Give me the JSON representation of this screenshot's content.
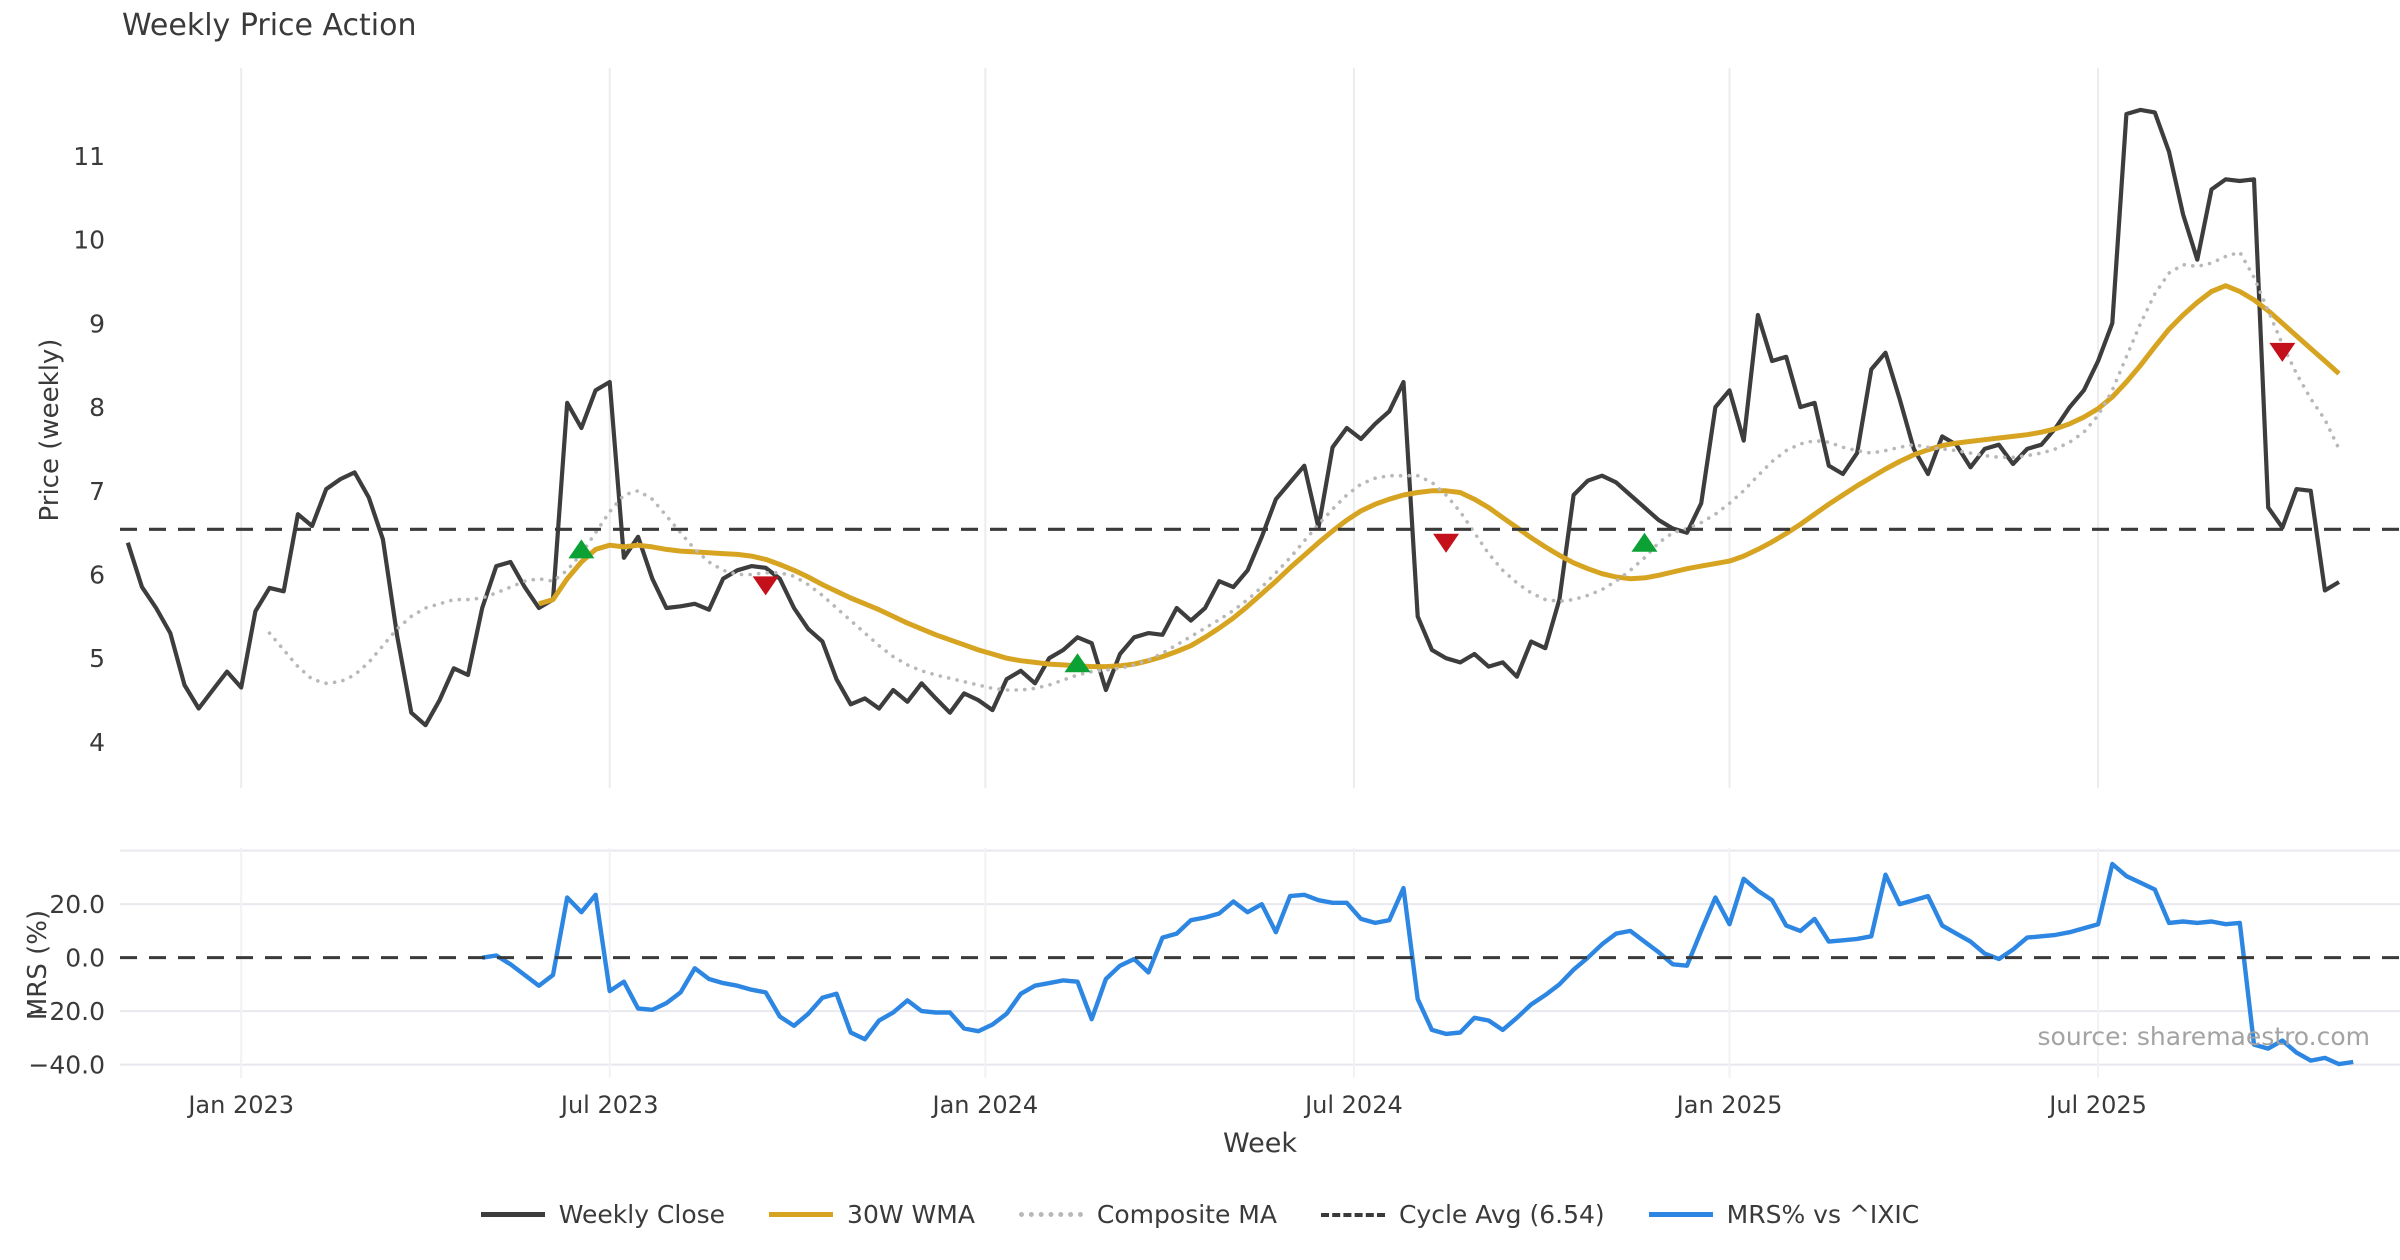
{
  "chart_data": {
    "type": "line",
    "title": "Weekly Price Action",
    "xlabel": "Week",
    "source": "source: sharemaestro.com",
    "x_unit": "week_index",
    "xlim_weeks": [
      -0.55,
      160.3
    ],
    "x_ticks": [
      {
        "week": 8,
        "label": "Jan 2023"
      },
      {
        "week": 34,
        "label": "Jul 2023"
      },
      {
        "week": 60.5,
        "label": "Jan 2024"
      },
      {
        "week": 86.5,
        "label": "Jul 2024"
      },
      {
        "week": 113,
        "label": "Jan 2025"
      },
      {
        "week": 139,
        "label": "Jul 2025"
      }
    ],
    "marker_colors": {
      "buy": "#0ba134",
      "sell": "#c3101b"
    },
    "panels": [
      {
        "name": "price",
        "ylabel": "Price (weekly)",
        "ylim": [
          3.45,
          12.05
        ],
        "yticks": [
          {
            "v": 4,
            "label": "4"
          },
          {
            "v": 5,
            "label": "5"
          },
          {
            "v": 6,
            "label": "6"
          },
          {
            "v": 7,
            "label": "7"
          },
          {
            "v": 8,
            "label": "8"
          },
          {
            "v": 9,
            "label": "9"
          },
          {
            "v": 10,
            "label": "10"
          },
          {
            "v": 11,
            "label": "11"
          }
        ],
        "grid": "vertical",
        "series": [
          {
            "name": "Weekly Close",
            "type": "line",
            "color": "#3d3d3d",
            "style": "solid",
            "width": 4.2,
            "start_week": 0,
            "values": [
              6.38,
              5.85,
              5.6,
              5.3,
              4.68,
              4.4,
              4.62,
              4.84,
              4.65,
              5.56,
              5.84,
              5.8,
              6.72,
              6.58,
              7.02,
              7.14,
              7.22,
              6.92,
              6.42,
              5.27,
              4.35,
              4.2,
              4.5,
              4.88,
              4.8,
              5.6,
              6.1,
              6.15,
              5.85,
              5.6,
              5.7,
              8.05,
              7.75,
              8.2,
              8.3,
              6.2,
              6.45,
              5.95,
              5.6,
              5.62,
              5.65,
              5.58,
              5.95,
              6.05,
              6.1,
              6.08,
              5.95,
              5.6,
              5.35,
              5.2,
              4.75,
              4.45,
              4.52,
              4.4,
              4.62,
              4.48,
              4.7,
              4.52,
              4.35,
              4.58,
              4.5,
              4.38,
              4.75,
              4.85,
              4.7,
              5.0,
              5.1,
              5.25,
              5.18,
              4.62,
              5.05,
              5.25,
              5.3,
              5.28,
              5.6,
              5.45,
              5.6,
              5.92,
              5.85,
              6.05,
              6.45,
              6.9,
              7.1,
              7.3,
              6.56,
              7.52,
              7.75,
              7.62,
              7.8,
              7.95,
              8.3,
              5.5,
              5.1,
              5.0,
              4.95,
              5.05,
              4.9,
              4.95,
              4.78,
              5.2,
              5.12,
              5.7,
              6.95,
              7.12,
              7.18,
              7.1,
              6.95,
              6.8,
              6.65,
              6.55,
              6.5,
              6.85,
              8.0,
              8.2,
              7.6,
              9.1,
              8.55,
              8.6,
              8.0,
              8.05,
              7.3,
              7.2,
              7.45,
              8.45,
              8.65,
              8.1,
              7.5,
              7.2,
              7.65,
              7.55,
              7.28,
              7.5,
              7.55,
              7.32,
              7.5,
              7.55,
              7.75,
              8.0,
              8.2,
              8.55,
              9.0,
              11.5,
              11.55,
              11.52,
              11.05,
              10.3,
              9.76,
              10.6,
              10.72,
              10.7,
              10.72,
              6.8,
              6.56,
              7.02,
              7.0,
              5.81,
              5.91
            ]
          },
          {
            "name": "30W WMA",
            "type": "line",
            "color": "#d7a422",
            "style": "solid",
            "width": 5,
            "start_week": 29,
            "values": [
              5.65,
              5.7,
              5.95,
              6.15,
              6.3,
              6.35,
              6.33,
              6.35,
              6.33,
              6.3,
              6.28,
              6.27,
              6.26,
              6.25,
              6.24,
              6.22,
              6.18,
              6.12,
              6.05,
              5.97,
              5.88,
              5.8,
              5.72,
              5.65,
              5.58,
              5.5,
              5.42,
              5.35,
              5.28,
              5.22,
              5.16,
              5.1,
              5.05,
              5.0,
              4.97,
              4.95,
              4.93,
              4.92,
              4.91,
              4.9,
              4.9,
              4.91,
              4.93,
              4.97,
              5.02,
              5.08,
              5.15,
              5.25,
              5.36,
              5.48,
              5.62,
              5.77,
              5.92,
              6.08,
              6.23,
              6.38,
              6.52,
              6.65,
              6.76,
              6.84,
              6.9,
              6.95,
              6.98,
              7.0,
              7.0,
              6.98,
              6.9,
              6.8,
              6.68,
              6.56,
              6.44,
              6.33,
              6.23,
              6.14,
              6.07,
              6.01,
              5.97,
              5.95,
              5.96,
              5.99,
              6.03,
              6.07,
              6.1,
              6.13,
              6.16,
              6.22,
              6.3,
              6.39,
              6.49,
              6.6,
              6.72,
              6.84,
              6.95,
              7.06,
              7.16,
              7.26,
              7.35,
              7.43,
              7.49,
              7.54,
              7.57,
              7.59,
              7.61,
              7.63,
              7.65,
              7.67,
              7.7,
              7.74,
              7.8,
              7.88,
              7.98,
              8.12,
              8.3,
              8.5,
              8.72,
              8.93,
              9.1,
              9.25,
              9.38,
              9.45,
              9.38,
              9.28,
              9.15,
              9.0,
              8.85,
              8.7,
              8.55,
              8.4
            ]
          },
          {
            "name": "Composite MA",
            "type": "line",
            "color": "#b8b8b8",
            "style": "dotted",
            "width": 3.6,
            "start_week": 10,
            "values": [
              5.3,
              5.1,
              4.9,
              4.75,
              4.7,
              4.72,
              4.8,
              4.95,
              5.15,
              5.35,
              5.5,
              5.6,
              5.65,
              5.7,
              5.7,
              5.72,
              5.78,
              5.85,
              5.92,
              5.95,
              5.92,
              6.05,
              6.25,
              6.5,
              6.75,
              6.95,
              7.0,
              6.9,
              6.7,
              6.5,
              6.3,
              6.15,
              6.05,
              6.0,
              6.0,
              6.02,
              6.02,
              5.98,
              5.88,
              5.75,
              5.6,
              5.45,
              5.3,
              5.15,
              5.02,
              4.92,
              4.85,
              4.8,
              4.76,
              4.72,
              4.68,
              4.64,
              4.62,
              4.62,
              4.64,
              4.68,
              4.74,
              4.8,
              4.84,
              4.86,
              4.88,
              4.92,
              4.98,
              5.06,
              5.16,
              5.26,
              5.36,
              5.46,
              5.57,
              5.7,
              5.85,
              6.02,
              6.2,
              6.4,
              6.6,
              6.78,
              6.95,
              7.08,
              7.15,
              7.18,
              7.18,
              7.18,
              7.1,
              6.95,
              6.75,
              6.5,
              6.25,
              6.05,
              5.9,
              5.78,
              5.7,
              5.68,
              5.7,
              5.75,
              5.82,
              5.92,
              6.05,
              6.2,
              6.38,
              6.5,
              6.55,
              6.62,
              6.72,
              6.85,
              7.0,
              7.18,
              7.35,
              7.48,
              7.56,
              7.6,
              7.58,
              7.52,
              7.48,
              7.45,
              7.48,
              7.52,
              7.55,
              7.52,
              7.5,
              7.48,
              7.45,
              7.42,
              7.4,
              7.4,
              7.42,
              7.45,
              7.5,
              7.58,
              7.7,
              7.9,
              8.2,
              8.6,
              9.0,
              9.35,
              9.6,
              9.7,
              9.68,
              9.72,
              9.8,
              9.85,
              9.55,
              9.15,
              8.75,
              8.4,
              8.1,
              7.85,
              7.5
            ]
          },
          {
            "name": "Cycle Avg (6.54)",
            "type": "hline",
            "color": "#3a3a3a",
            "style": "dashed",
            "width": 3.2,
            "value": 6.54
          }
        ],
        "markers": [
          {
            "signal": "buy",
            "week": 32,
            "value": 6.3
          },
          {
            "signal": "sell",
            "week": 45,
            "value": 5.87
          },
          {
            "signal": "buy",
            "week": 67,
            "value": 4.94
          },
          {
            "signal": "sell",
            "week": 93,
            "value": 6.38
          },
          {
            "signal": "buy",
            "week": 107,
            "value": 6.38
          },
          {
            "signal": "sell",
            "week": 152,
            "value": 8.66
          }
        ]
      },
      {
        "name": "mrs",
        "ylabel": "MRS (%)",
        "ylim": [
          -45,
          41
        ],
        "yticks": [
          {
            "v": 20,
            "label": "20.0"
          },
          {
            "v": 0,
            "label": "0.0"
          },
          {
            "v": -20,
            "label": "−20.0"
          },
          {
            "v": -40,
            "label": "−40.0"
          }
        ],
        "grid": "both",
        "gridlines_h": [
          40,
          20,
          -20,
          -40
        ],
        "series": [
          {
            "name": "MRS% vs ^IXIC",
            "type": "line",
            "color": "#2d87e2",
            "style": "solid",
            "width": 4.4,
            "start_week": 25,
            "values": [
              0.0,
              0.8,
              -2.5,
              -6.5,
              -10.5,
              -6.5,
              22.5,
              17.0,
              23.5,
              -12.5,
              -9.0,
              -19.0,
              -19.5,
              -17.0,
              -13.0,
              -4.0,
              -8.0,
              -9.5,
              -10.5,
              -12.0,
              -13.0,
              -22.0,
              -25.5,
              -21.0,
              -15.0,
              -13.5,
              -28.0,
              -30.5,
              -23.5,
              -20.5,
              -16.0,
              -20.0,
              -20.5,
              -20.5,
              -26.5,
              -27.5,
              -25.0,
              -21.0,
              -13.5,
              -10.5,
              -9.5,
              -8.5,
              -9.0,
              -23.0,
              -8.0,
              -3.0,
              -0.5,
              -5.5,
              7.5,
              9.0,
              14.0,
              15.0,
              16.5,
              21.0,
              17.0,
              20.0,
              9.5,
              23.0,
              23.5,
              21.5,
              20.5,
              20.5,
              14.5,
              13.0,
              14.0,
              26.0,
              -15.5,
              -27.0,
              -28.5,
              -28.0,
              -22.5,
              -23.5,
              -27.0,
              -22.5,
              -17.5,
              -14.0,
              -10.0,
              -4.5,
              0.0,
              5.0,
              9.0,
              10.0,
              6.0,
              2.0,
              -2.5,
              -3.0,
              10.0,
              22.5,
              12.5,
              29.5,
              25.0,
              21.5,
              12.0,
              10.0,
              14.5,
              6.0,
              6.5,
              7.0,
              8.0,
              31.0,
              20.0,
              21.5,
              23.0,
              12.0,
              9.0,
              6.0,
              1.5,
              -0.5,
              3.0,
              7.5,
              8.0,
              8.5,
              9.5,
              11.0,
              12.5,
              35.0,
              30.5,
              28.0,
              25.5,
              13.0,
              13.5,
              13.0,
              13.5,
              12.5,
              13.0,
              -32.5,
              -34.0,
              -31.0,
              -35.5,
              -38.5,
              -37.5,
              -39.8,
              -39.0
            ]
          },
          {
            "name": "zero-line",
            "type": "hline",
            "color": "#3a3a3a",
            "style": "dashed",
            "width": 3,
            "value": 0
          }
        ],
        "markers": []
      }
    ],
    "legend": [
      {
        "label": "Weekly Close",
        "color": "#3d3d3d",
        "style": "solid"
      },
      {
        "label": "30W WMA",
        "color": "#d7a422",
        "style": "solid"
      },
      {
        "label": "Composite MA",
        "color": "#b8b8b8",
        "style": "dotted"
      },
      {
        "label": "Cycle Avg (6.54)",
        "color": "#3a3a3a",
        "style": "dashed"
      },
      {
        "label": "MRS% vs ^IXIC",
        "color": "#2d87e2",
        "style": "solid"
      }
    ]
  }
}
